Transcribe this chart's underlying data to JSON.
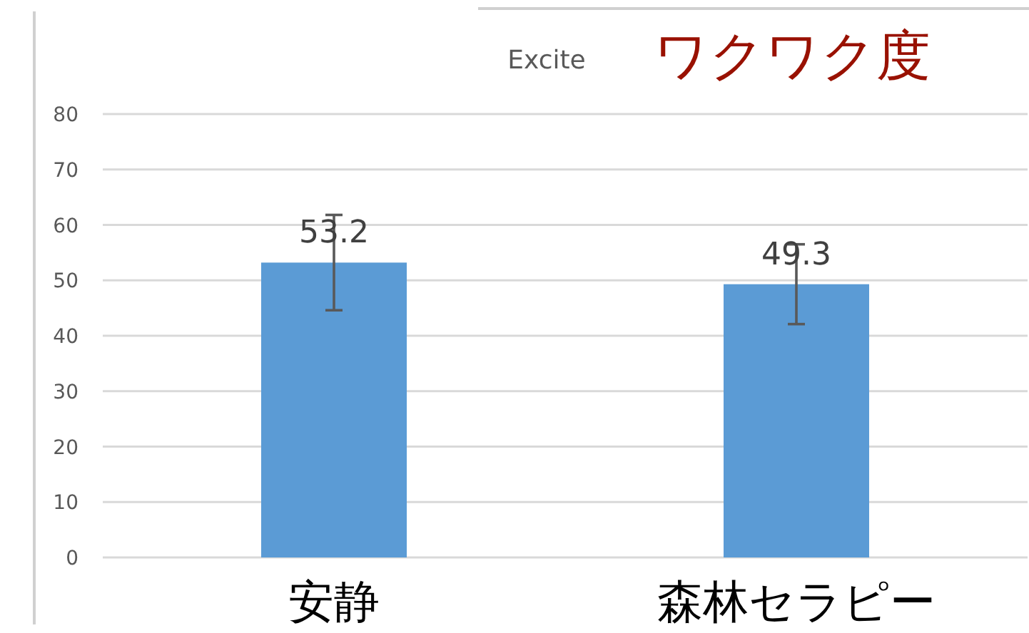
{
  "chart_data": {
    "type": "bar",
    "title": "Excite",
    "annotations": [
      "ワクワク度"
    ],
    "categories": [
      "安静",
      "森林セラピー"
    ],
    "values": [
      53.2,
      49.3
    ],
    "errors": [
      8.6,
      7.2
    ],
    "color": "#5b9bd5",
    "ylim": [
      0,
      80
    ],
    "yticks": [
      0,
      10,
      20,
      30,
      40,
      50,
      60,
      70,
      80
    ],
    "grid": "y",
    "data_labels": true
  }
}
